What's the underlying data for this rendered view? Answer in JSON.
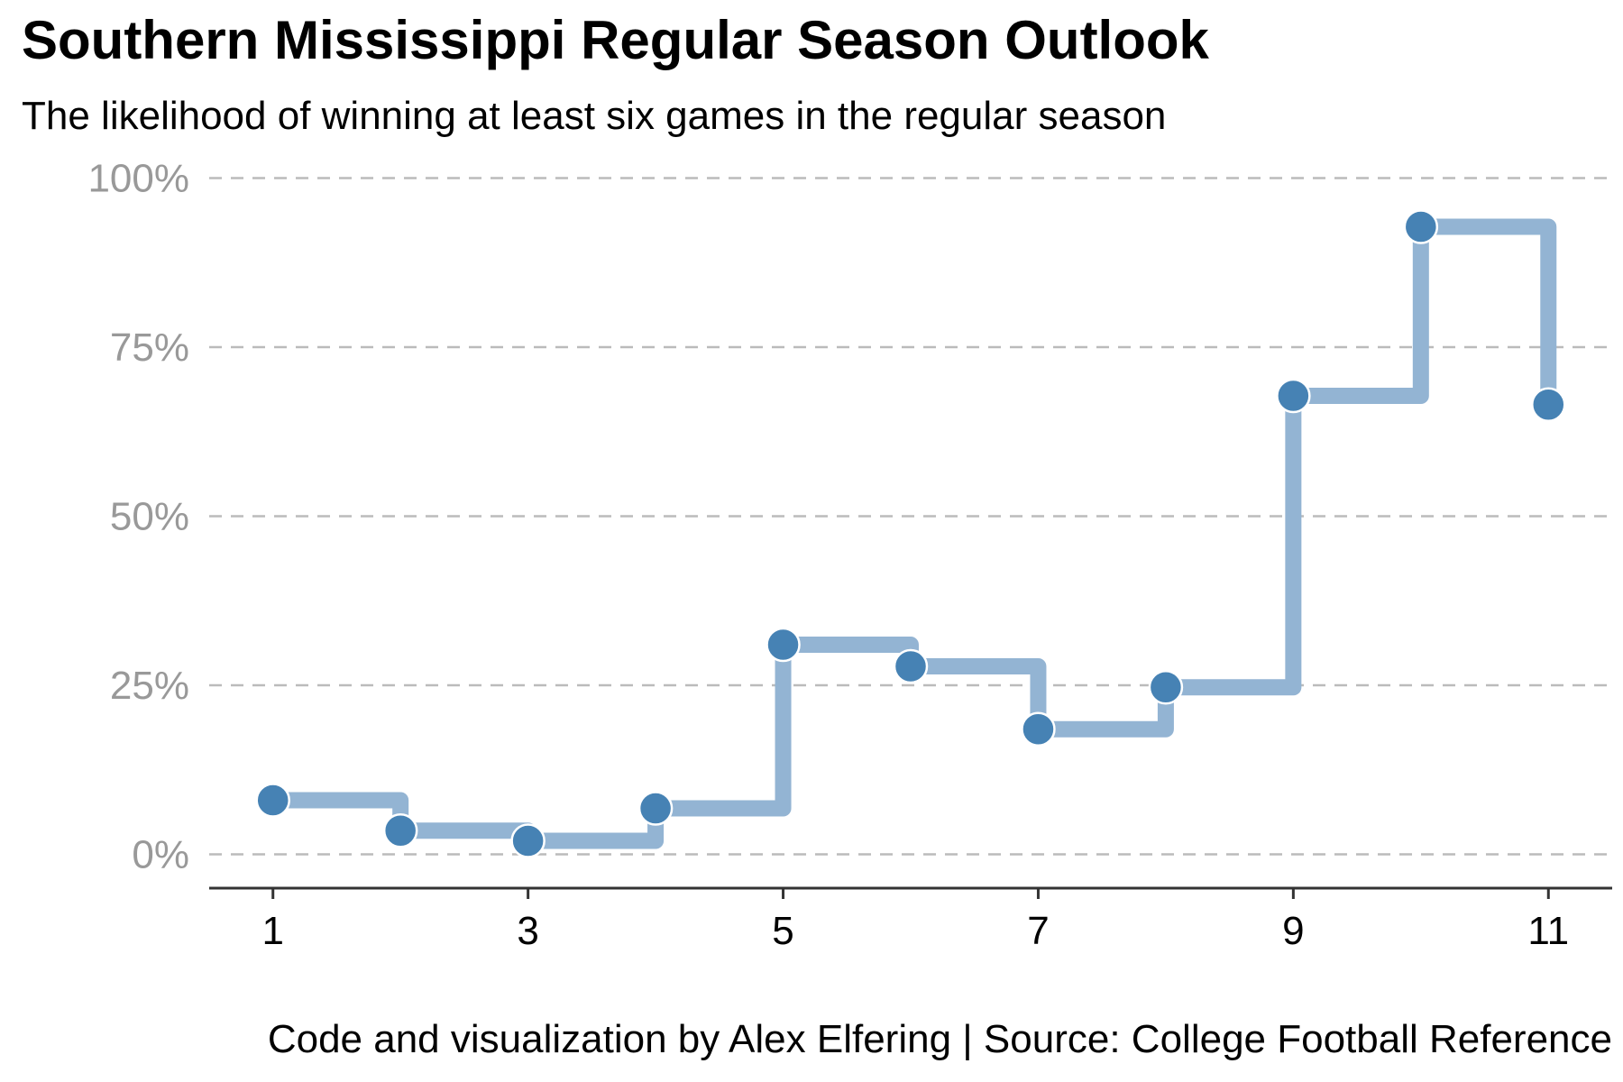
{
  "chart_data": {
    "type": "line",
    "style": "step",
    "title": "Southern Mississippi Regular Season Outlook",
    "subtitle": "The likelihood of winning at least six games in the regular season",
    "caption": "Code and visualization by Alex Elfering | Source: College Football Reference",
    "xlabel": "",
    "ylabel": "",
    "x": [
      1,
      2,
      3,
      4,
      5,
      6,
      7,
      8,
      9,
      10,
      11
    ],
    "values": [
      8,
      3.5,
      2,
      6.8,
      31,
      27.8,
      18.5,
      24.7,
      67.8,
      92.8,
      66.5
    ],
    "xlim": [
      0.5,
      11.5
    ],
    "ylim": [
      -5,
      105
    ],
    "x_ticks": [
      1,
      3,
      5,
      7,
      9,
      11
    ],
    "x_tick_labels": [
      "1",
      "3",
      "5",
      "7",
      "9",
      "11"
    ],
    "y_ticks": [
      0,
      25,
      50,
      75,
      100
    ],
    "y_tick_labels": [
      "0%",
      "25%",
      "50%",
      "75%",
      "100%"
    ],
    "grid": "horizontal-dashed",
    "legend": "none",
    "colors": {
      "line": "#93b4d3",
      "point": "#4682b4",
      "point_outline": "#ffffff",
      "grid": "#bbbbbb",
      "axis": "#333333",
      "y_tick_text": "#999999",
      "x_tick_text": "#000000"
    }
  }
}
